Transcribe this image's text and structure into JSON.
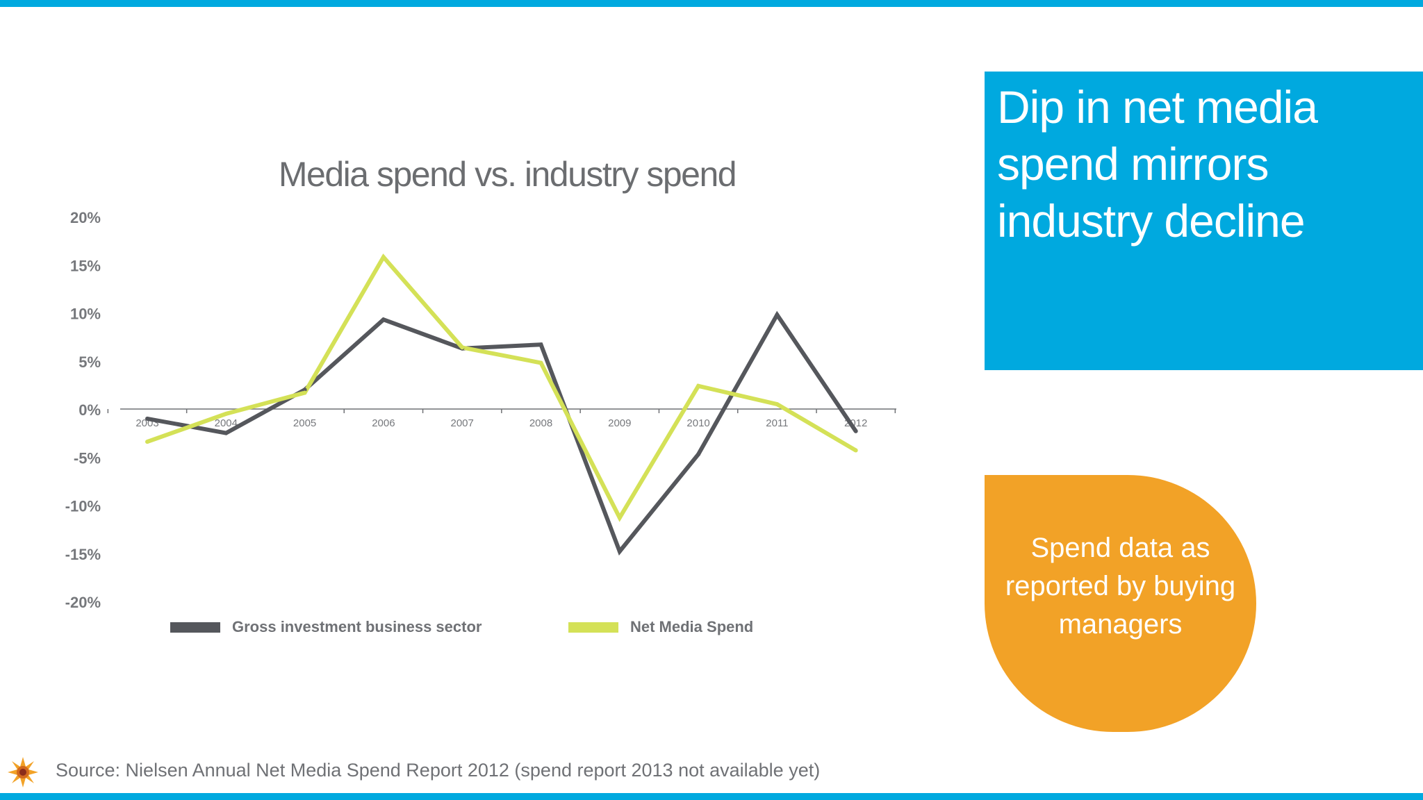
{
  "headline": "Dip in net media spend mirrors industry decline",
  "callout": "Spend data as reported by buying managers",
  "source": "Source: Nielsen Annual Net Media Spend Report 2012 (spend report 2013 not available yet)",
  "colors": {
    "accent_blue": "#00a9df",
    "callout_orange": "#f2a227",
    "series_gross": "#55575c",
    "series_net": "#d4e157",
    "text_gray": "#6f7175"
  },
  "icons": {
    "logo": "sunburst-logo-icon"
  },
  "chart_data": {
    "type": "line",
    "title": "Media spend vs. industry spend",
    "x": [
      "2003",
      "2004",
      "2005",
      "2006",
      "2007",
      "2008",
      "2009",
      "2010",
      "2011",
      "2012"
    ],
    "y_ticks": [
      "20%",
      "15%",
      "10%",
      "5%",
      "0%",
      "-5%",
      "-10%",
      "-15%",
      "-20%"
    ],
    "ylim": [
      -20,
      20
    ],
    "grid": false,
    "legend_position": "bottom",
    "series": [
      {
        "name": "Gross investment business sector",
        "values": [
          -1.0,
          -2.5,
          2.0,
          9.3,
          6.3,
          6.7,
          -14.8,
          -4.7,
          9.8,
          -2.3
        ]
      },
      {
        "name": "Net Media Spend",
        "values": [
          -3.4,
          -0.5,
          1.7,
          15.8,
          6.4,
          4.8,
          -11.3,
          2.4,
          0.5,
          -4.3
        ]
      }
    ]
  }
}
